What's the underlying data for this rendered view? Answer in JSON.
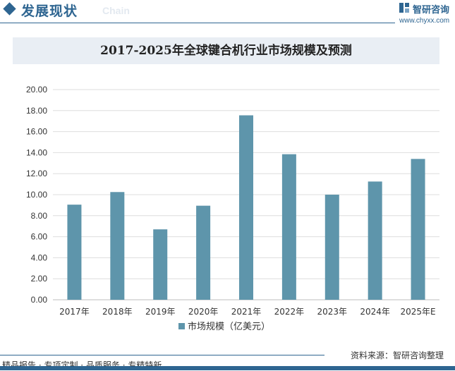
{
  "header": {
    "title": "发展现状",
    "subtitle": "Chain"
  },
  "brand": {
    "name": "智研咨询",
    "url": "www.chyxx.com"
  },
  "footer": {
    "tagline": "精品报告 · 专项定制 · 品质服务 · 专精特新",
    "source": "资料来源：智研咨询整理"
  },
  "colors": {
    "accent": "#2e6591",
    "bar": "#5e95ab",
    "title_bg": "#e9eef4"
  },
  "chart_data": {
    "type": "bar",
    "title": "2017-2025年全球键合机行业市场规模及预测",
    "categories": [
      "2017年",
      "2018年",
      "2019年",
      "2020年",
      "2021年",
      "2022年",
      "2023年",
      "2024年",
      "2025年E"
    ],
    "series": [
      {
        "name": "市场规模（亿美元）",
        "values": [
          9.05,
          10.25,
          6.7,
          8.95,
          17.55,
          13.85,
          10.0,
          11.25,
          13.4
        ]
      }
    ],
    "ylim": [
      0,
      20
    ],
    "yticks": [
      "0.00",
      "2.00",
      "4.00",
      "6.00",
      "8.00",
      "10.00",
      "12.00",
      "14.00",
      "16.00",
      "18.00",
      "20.00"
    ],
    "xlabel": "",
    "ylabel": "",
    "grid": true,
    "legend": "bottom-center"
  }
}
